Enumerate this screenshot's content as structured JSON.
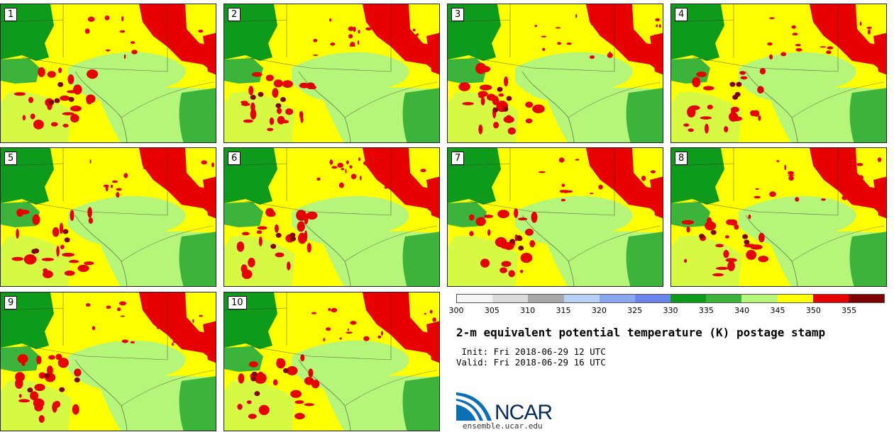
{
  "panels": [
    {
      "label": "1"
    },
    {
      "label": "2"
    },
    {
      "label": "3"
    },
    {
      "label": "4"
    },
    {
      "label": "5"
    },
    {
      "label": "6"
    },
    {
      "label": "7"
    },
    {
      "label": "8"
    },
    {
      "label": "9"
    },
    {
      "label": "10"
    }
  ],
  "colorbar": {
    "colors": [
      "#f4f4f4",
      "#dcdcdc",
      "#a9a9a9",
      "#b6d0f6",
      "#8aa7f2",
      "#6a86ee",
      "#0e9a1a",
      "#3cb43c",
      "#b4f57a",
      "#ffff00",
      "#e60000",
      "#800000"
    ],
    "ticks": [
      "300",
      "305",
      "310",
      "315",
      "320",
      "325",
      "330",
      "335",
      "340",
      "345",
      "350",
      "355"
    ]
  },
  "legend": {
    "title": "2-m equivalent potential temperature (K) postage stamp",
    "init": " Init: Fri 2018-06-29 12 UTC",
    "valid": "Valid: Fri 2018-06-29 16 UTC"
  },
  "logo": {
    "text": "NCAR",
    "url": "ensemble.ucar.edu"
  },
  "map_colors": {
    "light_green": "#b4f57a",
    "green": "#3cb43c",
    "dark_green": "#0e9a1a",
    "yellow": "#ffff00",
    "red": "#e60000",
    "dark_red": "#800000",
    "water": "#6a86ee"
  }
}
